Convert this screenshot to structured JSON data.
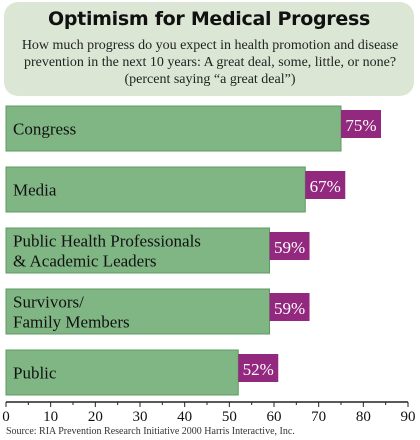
{
  "header": {
    "title": "Optimism for Medical Progress",
    "subtitle": "How much progress do you expect in health promotion and disease prevention in the next 10 years: A great deal, some, little, or none? (percent saying “a great deal”)"
  },
  "source": "Source: RIA Prevention Research Initiative 2000 Harris Interactive, Inc.",
  "colors": {
    "bar": "#7fb683",
    "bar_border": "#5f9a63",
    "label_bg": "#93287f",
    "label_text": "#ffffff"
  },
  "chart_data": {
    "type": "bar",
    "orientation": "horizontal",
    "categories": [
      [
        "Congress"
      ],
      [
        "Media"
      ],
      [
        "Public Health Professionals",
        "& Academic Leaders"
      ],
      [
        "Survivors/",
        "Family Members"
      ],
      [
        "Public"
      ]
    ],
    "values": [
      75,
      67,
      59,
      59,
      52
    ],
    "value_labels": [
      "75%",
      "67%",
      "59%",
      "59%",
      "52%"
    ],
    "xlim": [
      0,
      90
    ],
    "xticks": [
      0,
      10,
      20,
      30,
      40,
      50,
      60,
      70,
      80,
      90
    ],
    "title": "",
    "xlabel": "",
    "ylabel": ""
  }
}
